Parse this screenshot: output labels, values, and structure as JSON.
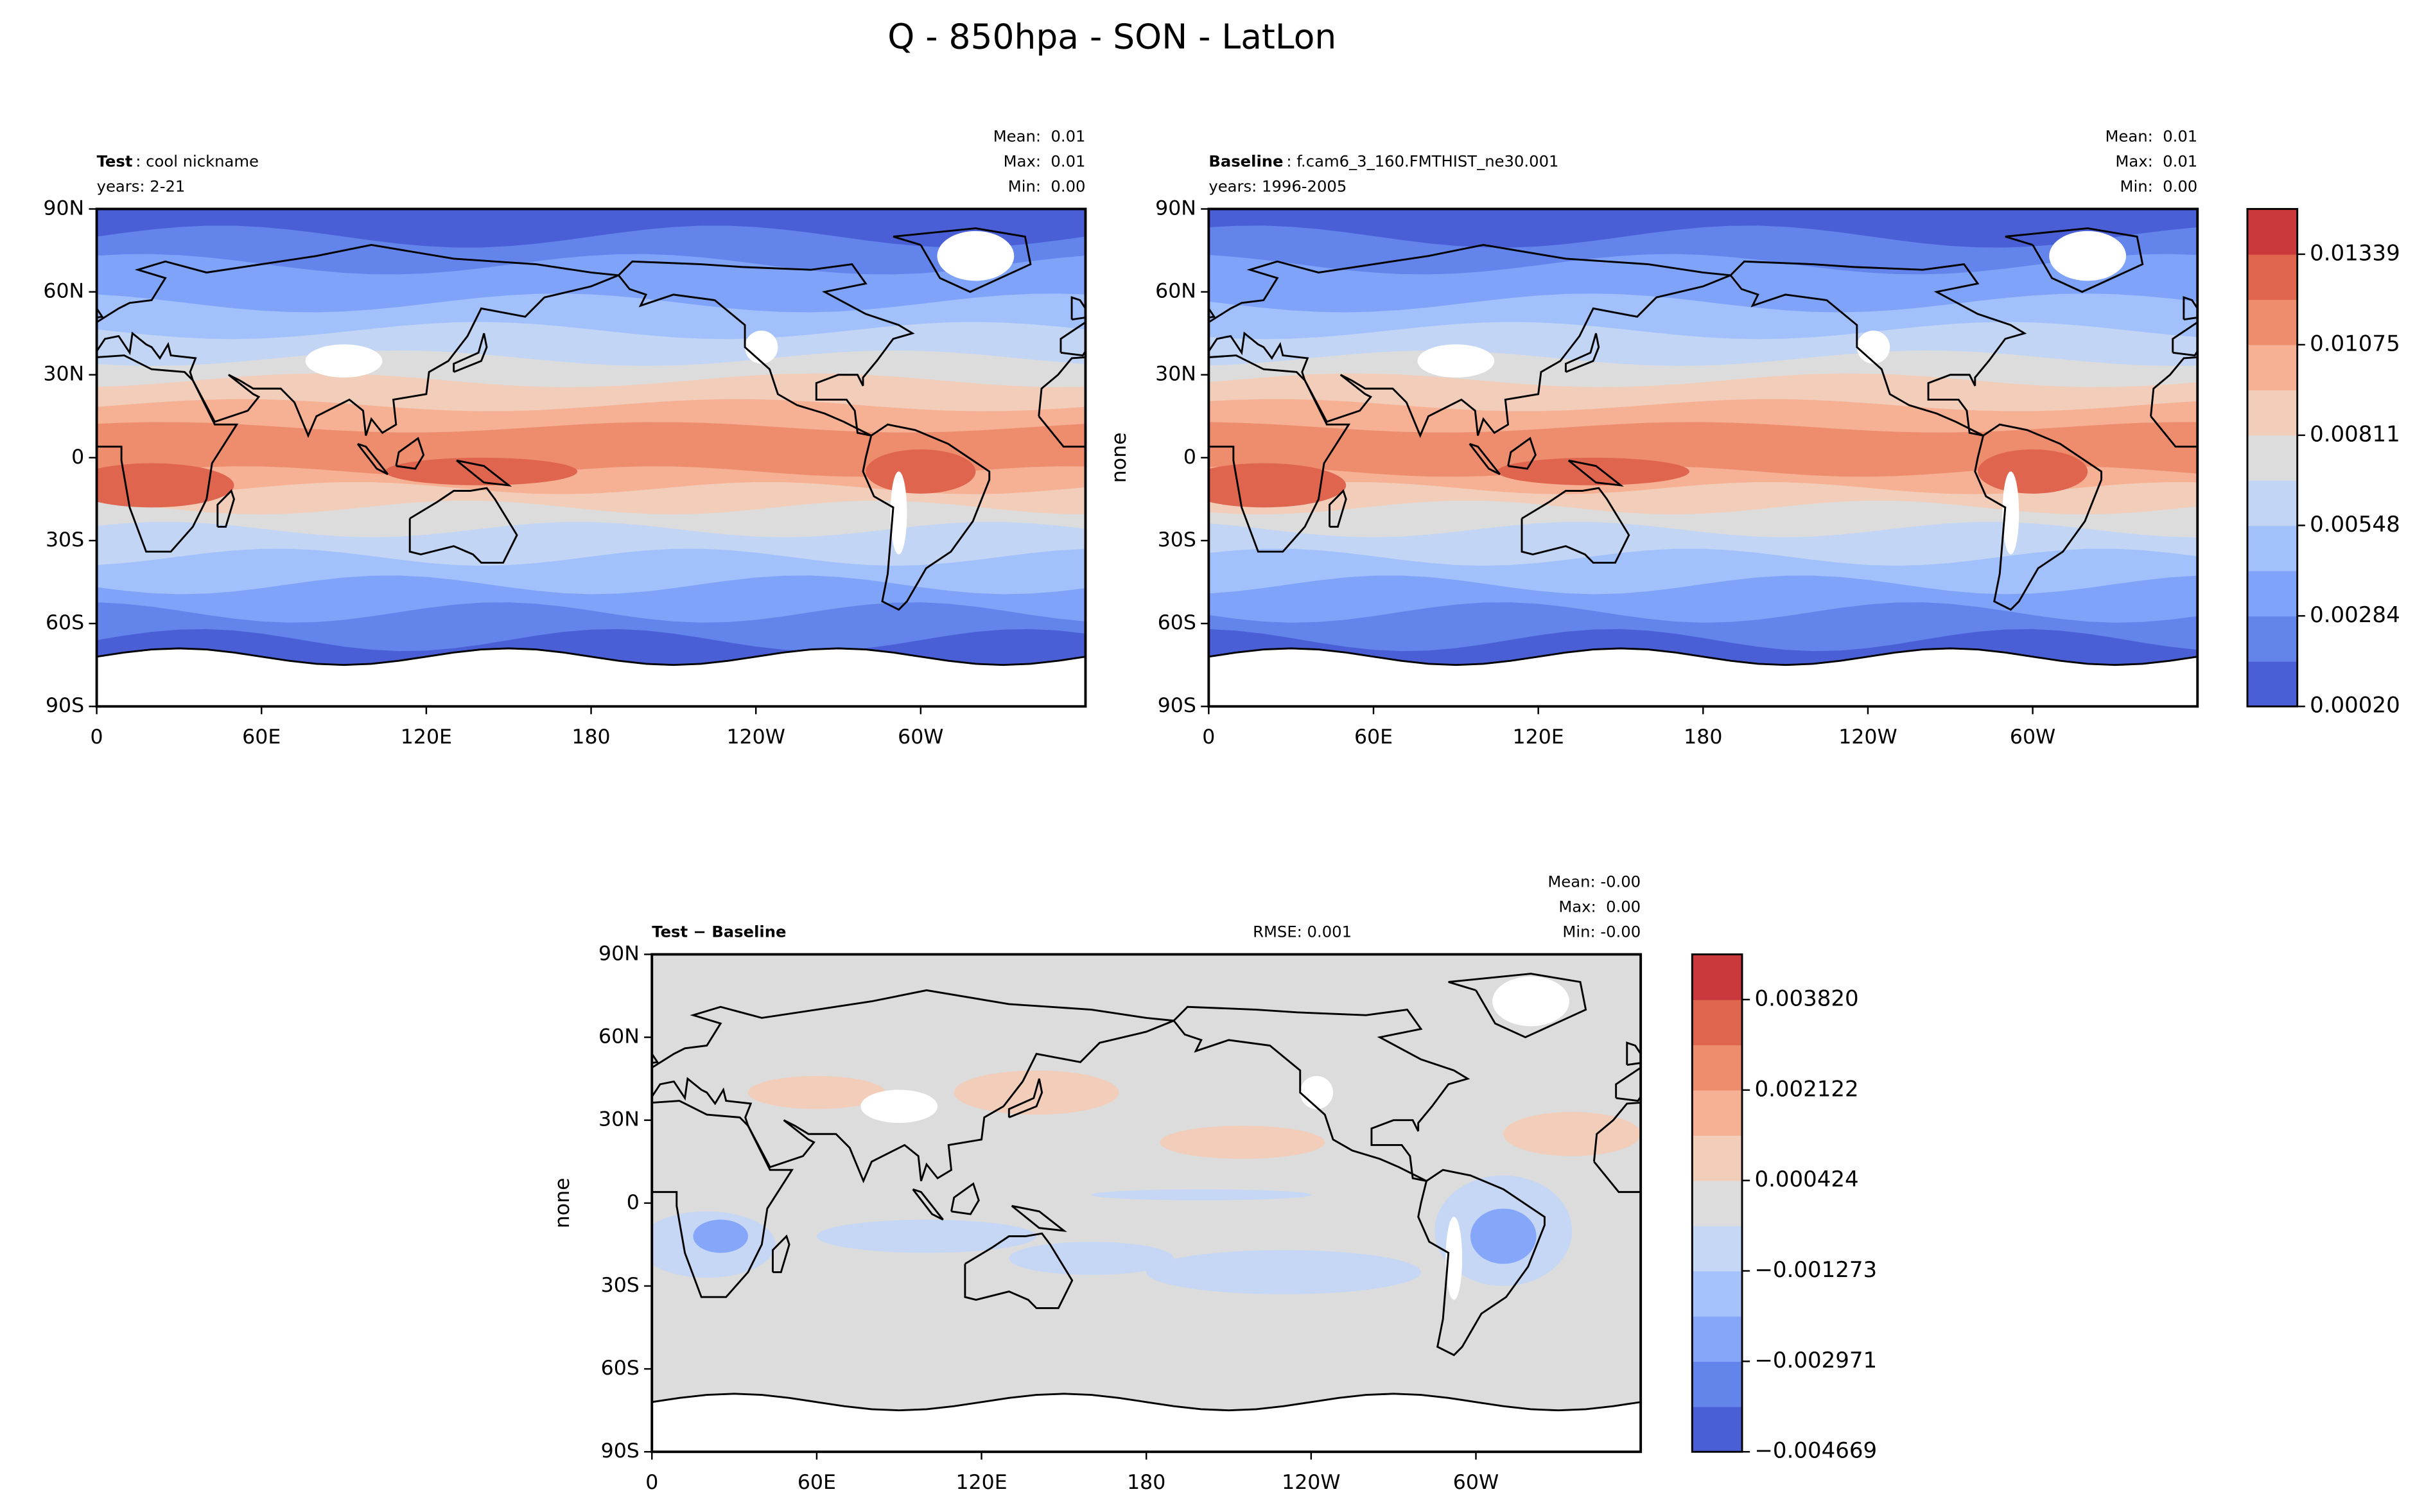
{
  "title": "Q - 850hpa - SON - LatLon",
  "panels": [
    {
      "type": "contour_map",
      "case": "Test",
      "case_name": ": cool nickname",
      "years": "years: 2-21",
      "stats": [
        "Mean:  0.01",
        "Max:  0.01",
        "Min:  0.00"
      ],
      "colorbar": 0,
      "xlim": [
        0,
        360
      ],
      "ylim": [
        -90,
        90
      ],
      "xticks": [
        0,
        {
          "value": 60,
          "label": "60E"
        },
        {
          "value": 120,
          "label": "120E"
        },
        180,
        {
          "value": 240,
          "label": "120W"
        },
        {
          "value": 300,
          "label": "60W"
        }
      ],
      "yticks": [
        {
          "value": 90,
          "label": "90N"
        },
        {
          "value": 60,
          "label": "60N"
        },
        {
          "value": 30,
          "label": "30N"
        },
        0,
        {
          "value": -30,
          "label": "30S"
        },
        {
          "value": -60,
          "label": "60S"
        },
        {
          "value": -90,
          "label": "90S"
        }
      ]
    },
    {
      "type": "contour_map",
      "case": "Baseline",
      "case_name": ": f.cam6_3_160.FMTHIST_ne30.001",
      "years": "years: 1996-2005",
      "stats": [
        "Mean:  0.01",
        "Max:  0.01",
        "Min:  0.00"
      ],
      "colorbar": 0,
      "ylabel": "none",
      "xlim": [
        0,
        360
      ],
      "ylim": [
        -90,
        90
      ],
      "xticks": [
        0,
        {
          "value": 60,
          "label": "60E"
        },
        {
          "value": 120,
          "label": "120E"
        },
        180,
        {
          "value": 240,
          "label": "120W"
        },
        {
          "value": 300,
          "label": "60W"
        }
      ],
      "yticks": [
        {
          "value": 90,
          "label": "90N"
        },
        {
          "value": 60,
          "label": "60N"
        },
        {
          "value": 30,
          "label": "30N"
        },
        0,
        {
          "value": -30,
          "label": "30S"
        },
        {
          "value": -60,
          "label": "60S"
        },
        {
          "value": -90,
          "label": "90S"
        }
      ]
    },
    {
      "type": "diff_map",
      "case": "Test − Baseline",
      "rmse": "RMSE: 0.001",
      "stats": [
        "Mean: -0.00",
        "Max:  0.00",
        "Min: -0.00"
      ],
      "colorbar": 1,
      "ylabel": "none",
      "xlim": [
        0,
        360
      ],
      "ylim": [
        -90,
        90
      ],
      "xticks": [
        0,
        {
          "value": 60,
          "label": "60E"
        },
        {
          "value": 120,
          "label": "120E"
        },
        180,
        {
          "value": 240,
          "label": "120W"
        },
        {
          "value": 300,
          "label": "60W"
        }
      ],
      "yticks": [
        {
          "value": 90,
          "label": "90N"
        },
        {
          "value": 60,
          "label": "60N"
        },
        {
          "value": 30,
          "label": "30N"
        },
        0,
        {
          "value": -30,
          "label": "30S"
        },
        {
          "value": -60,
          "label": "60S"
        },
        {
          "value": -90,
          "label": "90S"
        }
      ]
    }
  ],
  "colorbars": [
    {
      "lim": [
        0.0002,
        0.01471
      ],
      "colors": [
        "#4a5fd6",
        "#6384eb",
        "#7fa3f8",
        "#a2c0fc",
        "#c3d5f4",
        "#dcdcdc",
        "#f2cdb9",
        "#f6b093",
        "#ee8c6e",
        "#e0654f",
        "#c9383a"
      ],
      "ticks": [
        {
          "value": 0.0002,
          "label": "0.00020"
        },
        {
          "value": 0.00284,
          "label": "0.00284"
        },
        {
          "value": 0.00548,
          "label": "0.00548"
        },
        {
          "value": 0.00811,
          "label": "0.00811"
        },
        {
          "value": 0.01075,
          "label": "0.01075"
        },
        0.01339
      ]
    },
    {
      "lim": [
        -0.004669,
        0.004669
      ],
      "colors": [
        "#4a5fd6",
        "#6384eb",
        "#86a7f9",
        "#a5c2fd",
        "#c5d7f4",
        "#dcdcdc",
        "#f2cdb9",
        "#f6b093",
        "#ee8c6e",
        "#e0654f",
        "#c9383a"
      ],
      "ticks": [
        {
          "value": -0.004669,
          "label": "−0.004669"
        },
        {
          "value": -0.002971,
          "label": "−0.002971"
        },
        {
          "value": -0.001273,
          "label": "−0.001273"
        },
        {
          "value": 0.000424,
          "label": "0.000424"
        },
        0.002122,
        {
          "value": 0.00382,
          "label": "0.003820"
        }
      ]
    }
  ]
}
